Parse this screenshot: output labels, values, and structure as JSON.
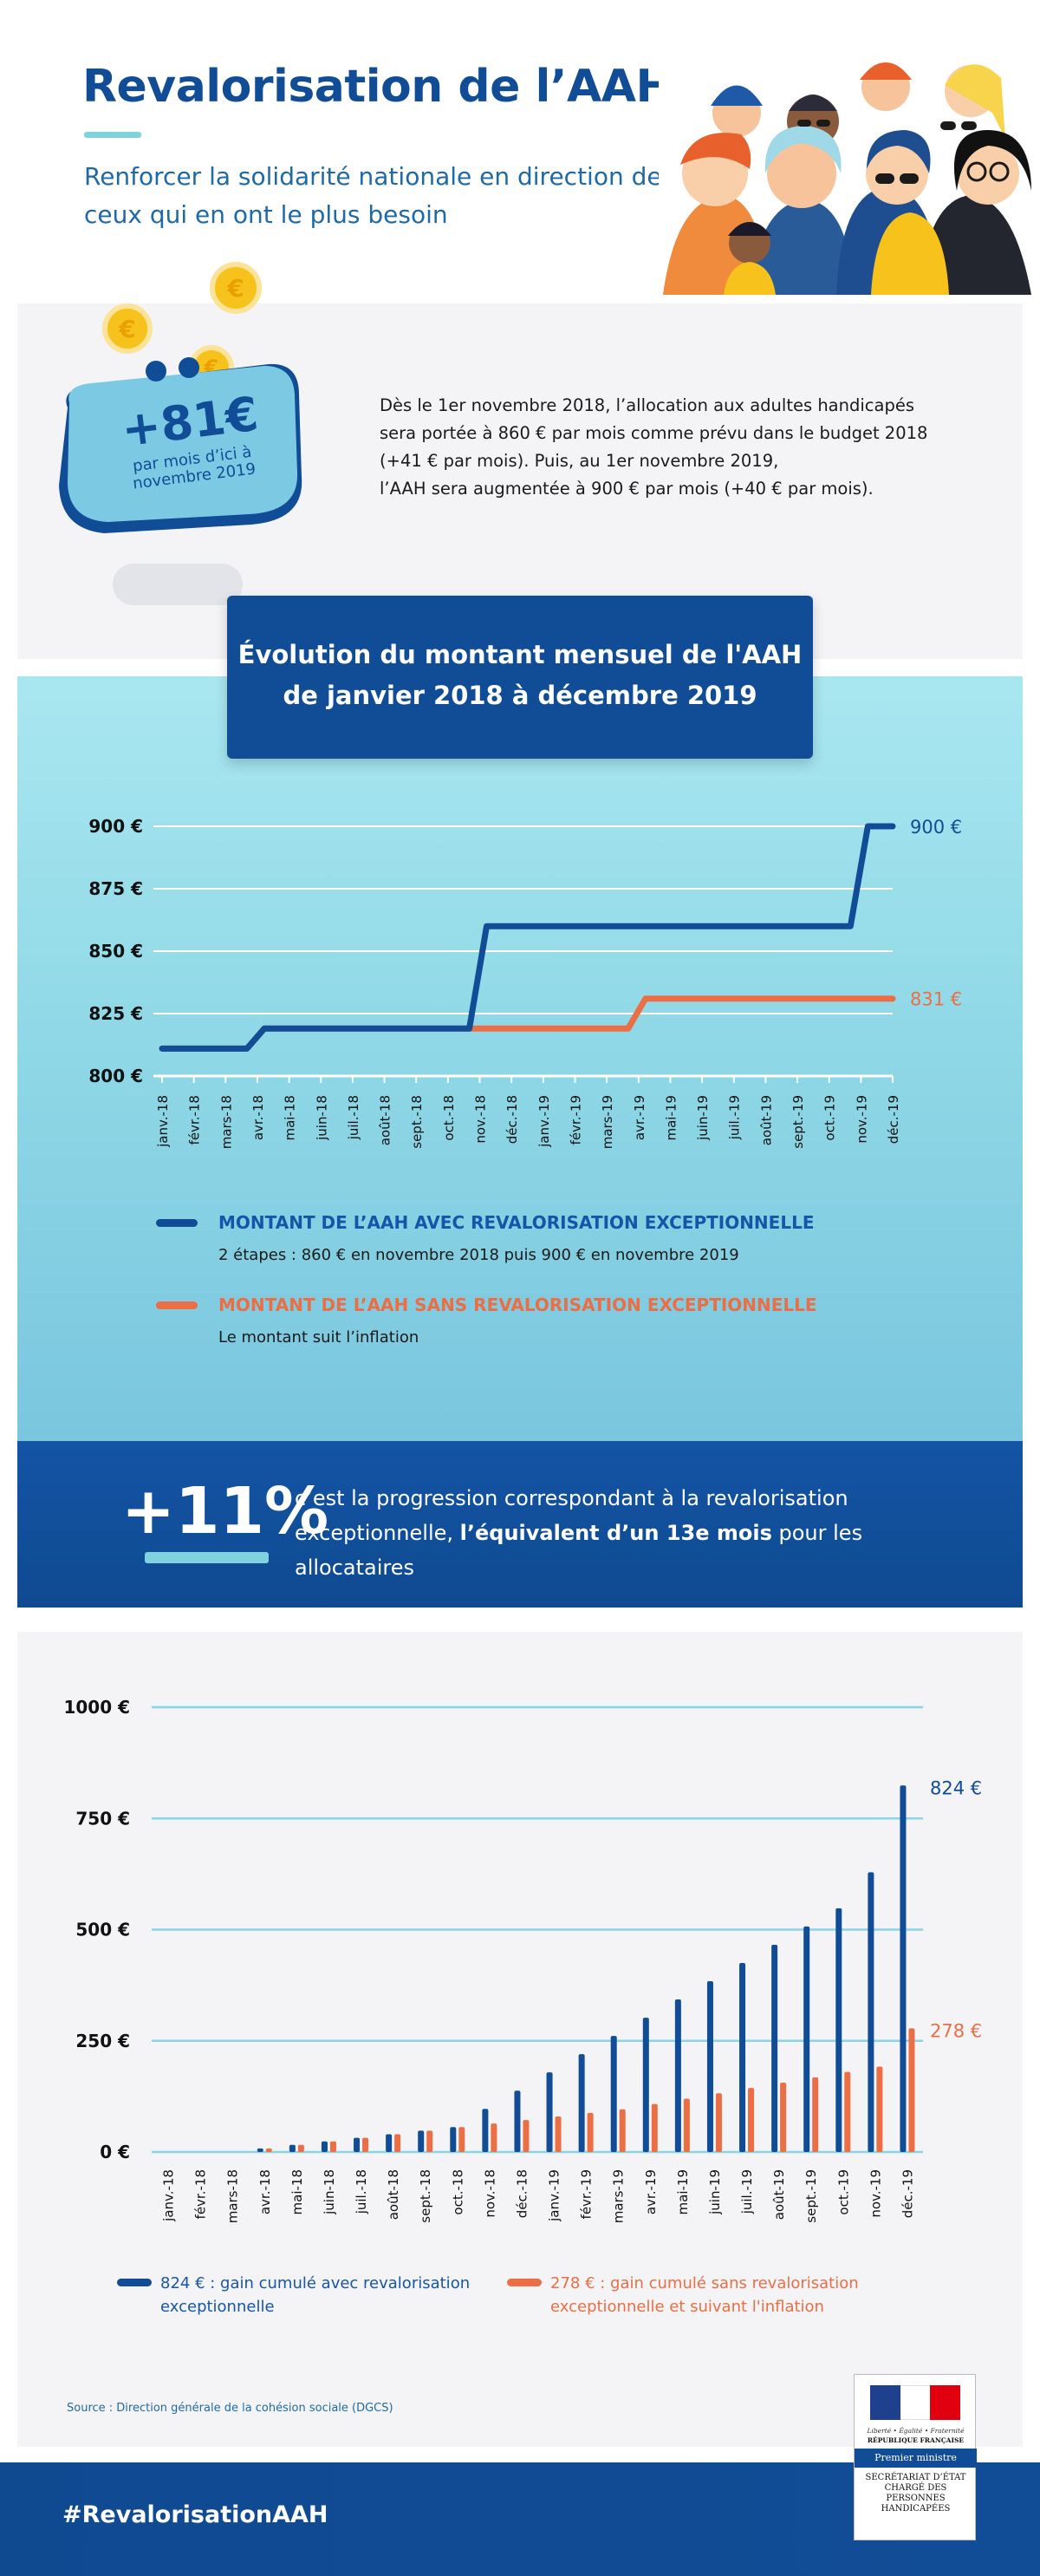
{
  "header": {
    "title": "Revalorisation de l’AAH",
    "subtitle": "Renforcer la solidarité nationale en direction de ceux qui en ont le plus besoin"
  },
  "intro": {
    "wallet_amount": "+81€",
    "wallet_caption": "par mois d’ici à novembre 2019",
    "coin_symbol": "€",
    "paragraph_1": "Dès le 1er novembre 2018, l’allocation aux adultes handicapés sera portée à 860 € par mois comme prévu dans le budget 2018  (+41 € par mois).  Puis, au 1er novembre 2019,",
    "paragraph_2": "l’AAH sera augmentée à 900 € par mois (+40 € par mois)."
  },
  "colors": {
    "dark_blue": "#114c96",
    "orange": "#eb6e45",
    "light_cyan": "#7fd3df"
  },
  "chart_data": [
    {
      "type": "line",
      "title": "Évolution du montant mensuel de l'AAH\nde janvier 2018 à décembre 2019",
      "categories": [
        "janv.-18",
        "févr.-18",
        "mars-18",
        "avr.-18",
        "mai-18",
        "juin-18",
        "juil.-18",
        "août-18",
        "sept.-18",
        "oct.-18",
        "nov.-18",
        "déc.-18",
        "janv.-19",
        "févr.-19",
        "mars-19",
        "avr.-19",
        "mai-19",
        "juin-19",
        "juil.-19",
        "août-19",
        "sept.-19",
        "oct.-19",
        "nov.-19",
        "déc.-19"
      ],
      "ylim": [
        800,
        900
      ],
      "yticks": [
        "800 €",
        "825 €",
        "850 €",
        "875 €",
        "900 €"
      ],
      "ytick_values": [
        800,
        825,
        850,
        875,
        900
      ],
      "series": [
        {
          "name": "MONTANT DE L’AAH AVEC REVALORISATION EXCEPTIONNELLE",
          "color": "#114c96",
          "values": [
            811,
            811,
            811,
            819,
            819,
            819,
            819,
            819,
            819,
            819,
            860,
            860,
            860,
            860,
            860,
            860,
            860,
            860,
            860,
            860,
            860,
            860,
            900,
            900
          ],
          "end_label": "900 €"
        },
        {
          "name": "MONTANT DE L’AAH SANS REVALORISATION EXCEPTIONNELLE",
          "color": "#eb6e45",
          "values": [
            811,
            811,
            811,
            819,
            819,
            819,
            819,
            819,
            819,
            819,
            819,
            819,
            819,
            819,
            819,
            831,
            831,
            831,
            831,
            831,
            831,
            831,
            831,
            831
          ],
          "end_label": "831 €"
        }
      ],
      "legend": [
        {
          "label": "MONTANT DE L’AAH AVEC REVALORISATION EXCEPTIONNELLE",
          "sub": "2 étapes : 860 € en novembre 2018 puis 900 € en novembre 2019",
          "color": "#114c96"
        },
        {
          "label": "MONTANT DE L’AAH SANS REVALORISATION EXCEPTIONNELLE",
          "sub": "Le montant suit l’inflation",
          "color": "#eb6e45"
        }
      ]
    },
    {
      "type": "bar",
      "categories": [
        "janv.-18",
        "févr.-18",
        "mars-18",
        "avr.-18",
        "mai-18",
        "juin-18",
        "juil.-18",
        "août-18",
        "sept.-18",
        "oct.-18",
        "nov.-18",
        "déc.-18",
        "janv.-19",
        "févr.-19",
        "mars-19",
        "avr.-19",
        "mai-19",
        "juin-19",
        "juil.-19",
        "août-19",
        "sept.-19",
        "oct.-19",
        "nov.-19",
        "déc.-19"
      ],
      "ylim": [
        0,
        1000
      ],
      "yticks": [
        "0 €",
        "250 €",
        "500 €",
        "750 €",
        "1000 €"
      ],
      "ytick_values": [
        0,
        250,
        500,
        750,
        1000
      ],
      "series": [
        {
          "name": "824 € : gain cumulé avec revalorisation exceptionnelle",
          "color": "#114c96",
          "values": [
            0,
            0,
            0,
            8,
            16,
            24,
            32,
            40,
            48,
            56,
            97,
            138,
            179,
            220,
            261,
            302,
            343,
            384,
            425,
            466,
            507,
            548,
            629,
            824
          ],
          "end_label": "824 €"
        },
        {
          "name": "278 € : gain cumulé sans revalorisation exceptionnelle et suivant l'inflation",
          "color": "#eb6e45",
          "values": [
            0,
            0,
            0,
            8,
            16,
            24,
            32,
            40,
            48,
            56,
            64,
            72,
            80,
            88,
            96,
            108,
            120,
            132,
            144,
            156,
            168,
            180,
            192,
            278
          ],
          "end_label": "278 €"
        }
      ],
      "legend": [
        {
          "label": "824 € : gain cumulé avec revalorisation exceptionnelle",
          "color": "#114c96"
        },
        {
          "label": "278 € : gain cumulé sans revalorisation exceptionnelle et suivant l'inflation",
          "color": "#eb6e45"
        }
      ]
    }
  ],
  "highlight": {
    "value": "+11%",
    "text_1": "c’est la progression correspondant à la revalorisation exceptionnelle, ",
    "text_bold": "l’équivalent d’un 13e mois",
    "text_2": " pour les allocataires"
  },
  "source": "Source : Direction générale de la cohésion sociale (DGCS)",
  "footer": {
    "hashtag": "#RevalorisationAAH",
    "gov_motto": "Liberté • Égalité • Fraternité",
    "gov_republic": "RÉPUBLIQUE FRANÇAISE",
    "gov_pm": "Premier ministre",
    "gov_secretariat": "SECRÉTARIAT D’ÉTAT CHARGÉ DES PERSONNES HANDICAPÉES"
  }
}
